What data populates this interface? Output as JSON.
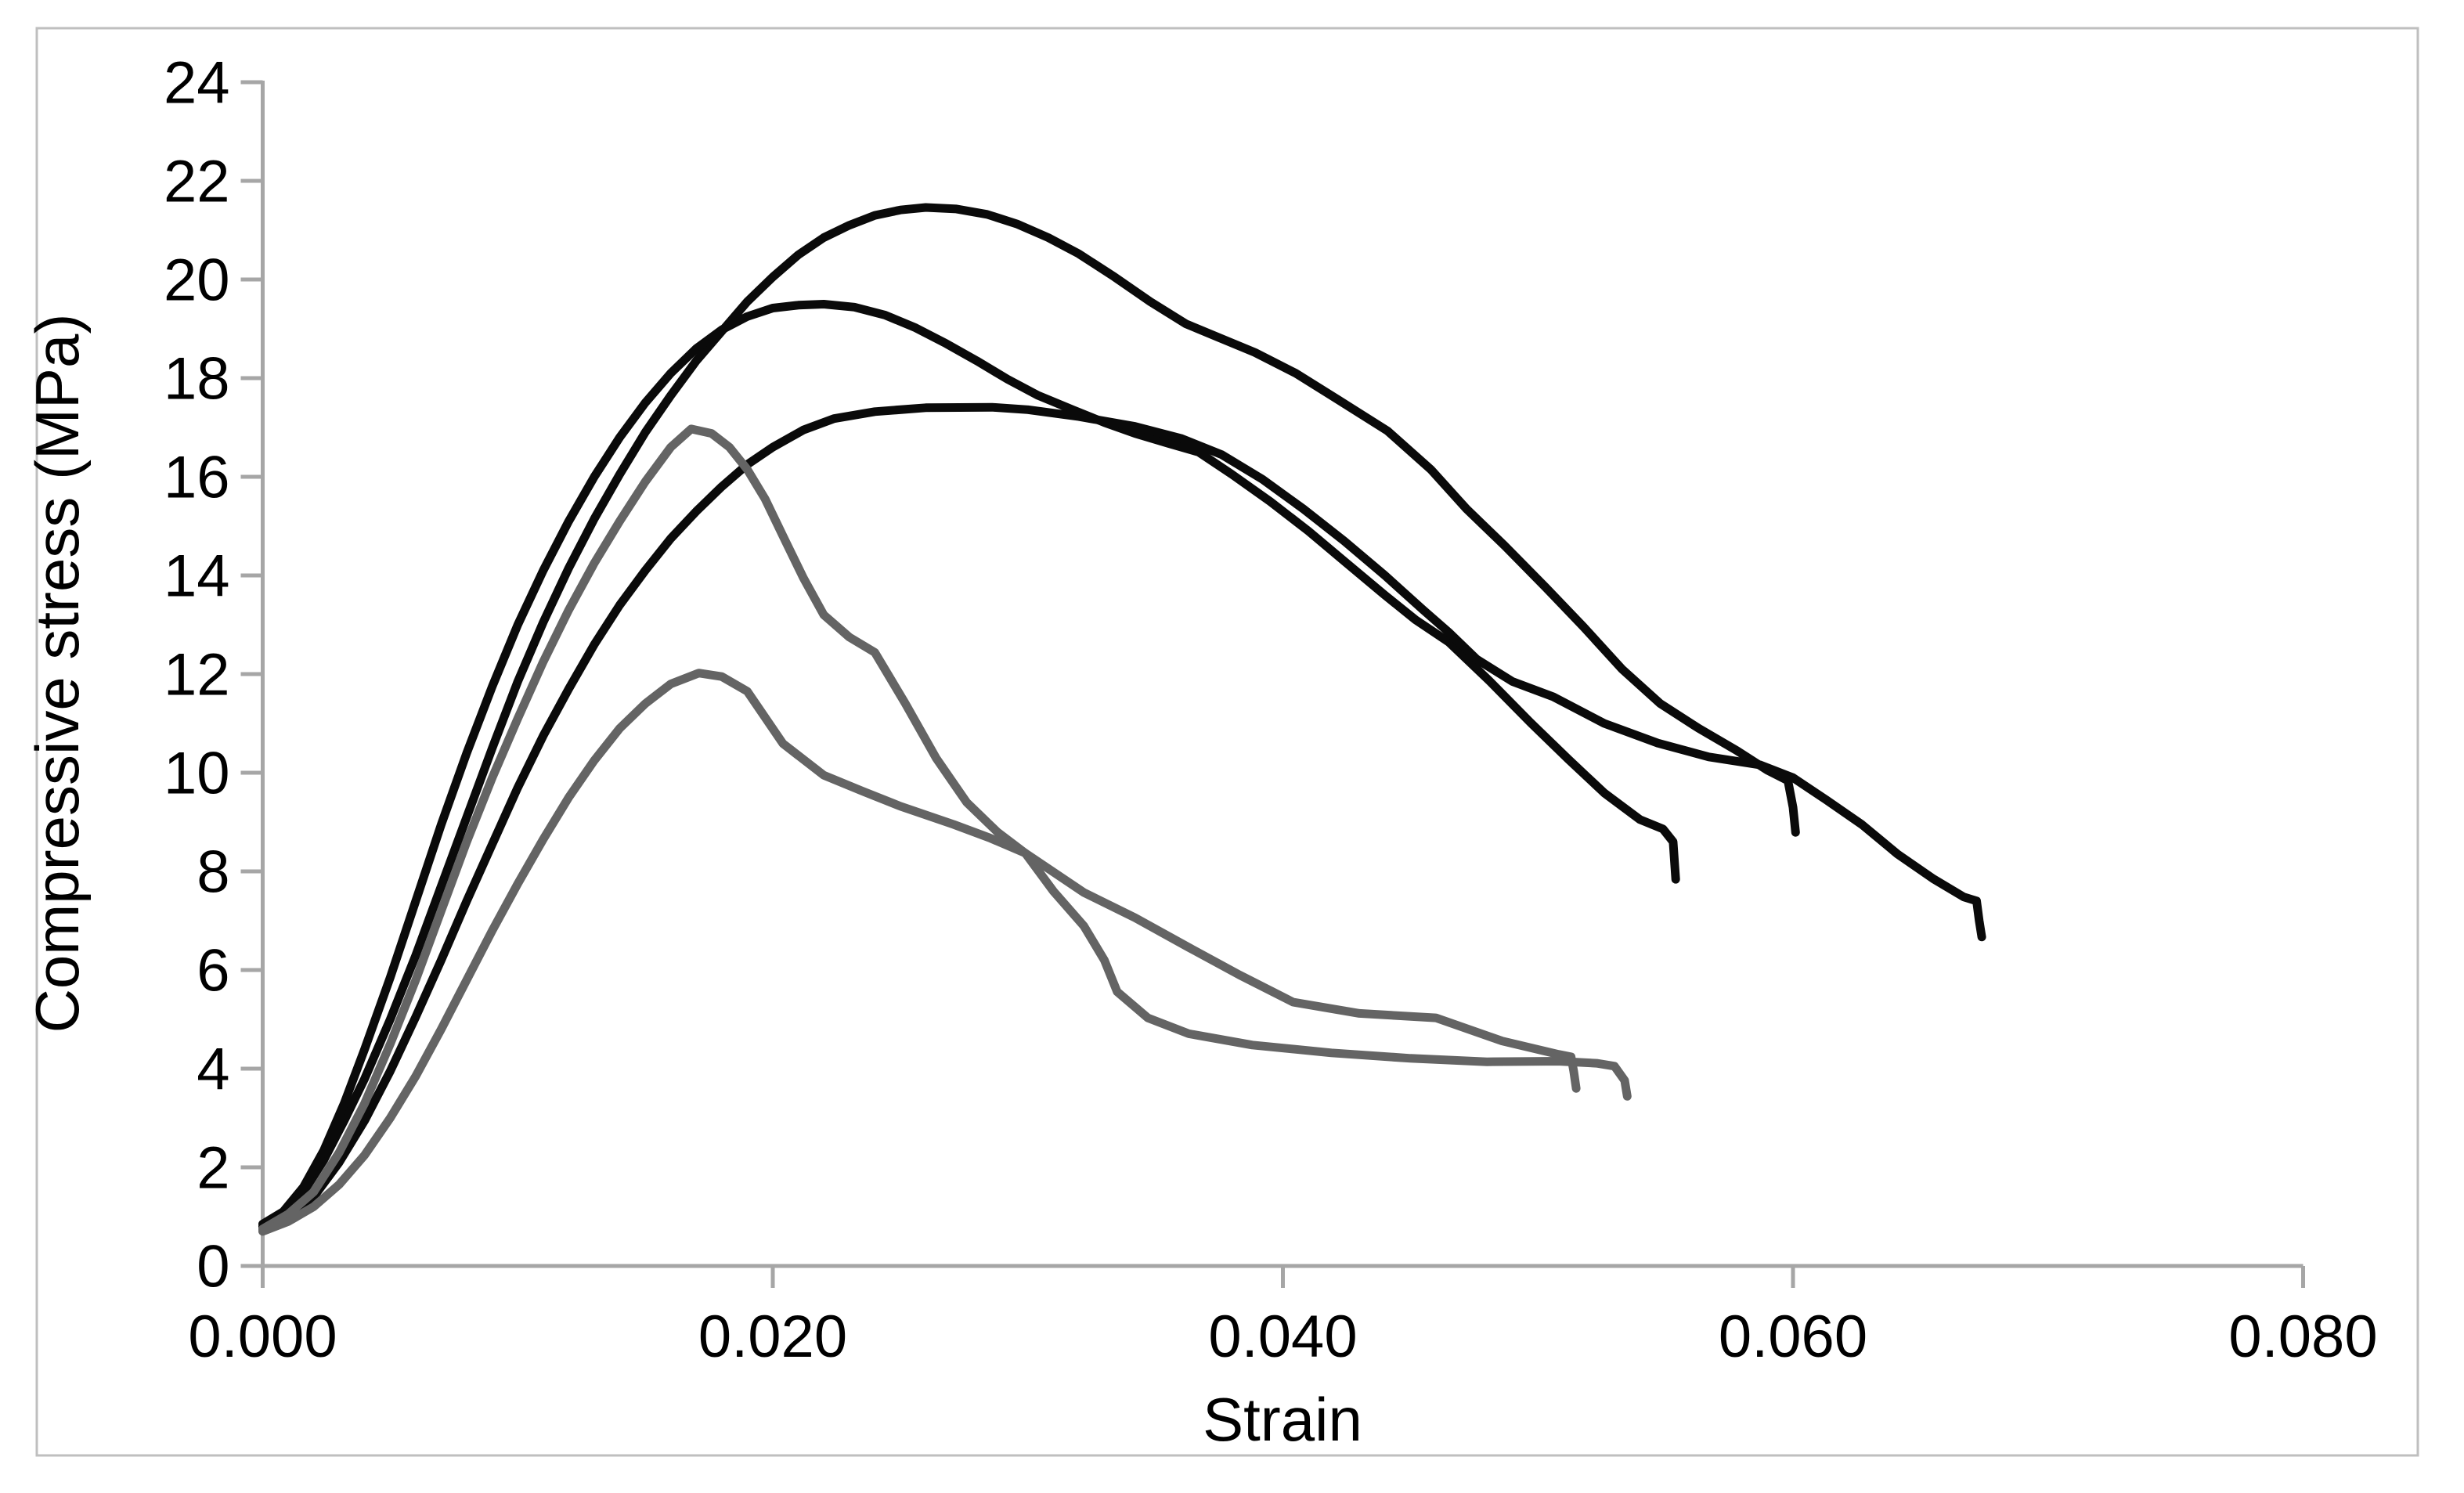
{
  "chart_data": {
    "type": "line",
    "title": "",
    "xlabel": "Strain",
    "ylabel": "Compressive stress (MPa)",
    "xlim": [
      0.0,
      0.08
    ],
    "ylim": [
      0,
      24
    ],
    "grid": false,
    "legend_position": "none",
    "x_tick_labels": [
      "0.000",
      "0.020",
      "0.040",
      "0.060",
      "0.080"
    ],
    "x_tick_values": [
      0.0,
      0.02,
      0.04,
      0.06,
      0.08
    ],
    "y_tick_values": [
      0,
      2,
      4,
      6,
      8,
      10,
      12,
      14,
      16,
      18,
      20,
      22,
      24
    ],
    "axis_color": "#a6a6a6",
    "border_color": "#bfbfbf",
    "series": [
      {
        "name": "black-curve-peak-21",
        "color": "#0a0a0a",
        "peak": {
          "strain": 0.026,
          "stress": 21.45
        },
        "points": [
          [
            0.0,
            0.8
          ],
          [
            0.0008,
            1.05
          ],
          [
            0.0016,
            1.5
          ],
          [
            0.0024,
            2.15
          ],
          [
            0.0032,
            2.95
          ],
          [
            0.004,
            3.8
          ],
          [
            0.005,
            5.0
          ],
          [
            0.006,
            6.3
          ],
          [
            0.007,
            7.7
          ],
          [
            0.008,
            9.1
          ],
          [
            0.009,
            10.5
          ],
          [
            0.01,
            11.85
          ],
          [
            0.011,
            13.05
          ],
          [
            0.012,
            14.15
          ],
          [
            0.013,
            15.15
          ],
          [
            0.014,
            16.05
          ],
          [
            0.015,
            16.9
          ],
          [
            0.016,
            17.65
          ],
          [
            0.017,
            18.35
          ],
          [
            0.018,
            18.95
          ],
          [
            0.019,
            19.55
          ],
          [
            0.02,
            20.05
          ],
          [
            0.021,
            20.5
          ],
          [
            0.022,
            20.85
          ],
          [
            0.023,
            21.1
          ],
          [
            0.024,
            21.3
          ],
          [
            0.025,
            21.41
          ],
          [
            0.026,
            21.46
          ],
          [
            0.0272,
            21.43
          ],
          [
            0.0284,
            21.32
          ],
          [
            0.0296,
            21.12
          ],
          [
            0.0308,
            20.85
          ],
          [
            0.032,
            20.52
          ],
          [
            0.0334,
            20.05
          ],
          [
            0.0348,
            19.55
          ],
          [
            0.0362,
            19.1
          ],
          [
            0.0375,
            18.82
          ],
          [
            0.0389,
            18.52
          ],
          [
            0.0405,
            18.1
          ],
          [
            0.0422,
            17.55
          ],
          [
            0.0441,
            16.93
          ],
          [
            0.0458,
            16.15
          ],
          [
            0.0472,
            15.35
          ],
          [
            0.0487,
            14.6
          ],
          [
            0.0503,
            13.76
          ],
          [
            0.0518,
            12.95
          ],
          [
            0.0533,
            12.1
          ],
          [
            0.0548,
            11.4
          ],
          [
            0.0563,
            10.9
          ],
          [
            0.0578,
            10.45
          ],
          [
            0.059,
            10.05
          ],
          [
            0.0598,
            9.84
          ],
          [
            0.06,
            9.3
          ],
          [
            0.0601,
            8.79
          ]
        ]
      },
      {
        "name": "black-curve-peak-19",
        "color": "#0a0a0a",
        "peak": {
          "strain": 0.022,
          "stress": 19.5
        },
        "points": [
          [
            0.0,
            0.85
          ],
          [
            0.0008,
            1.1
          ],
          [
            0.0016,
            1.6
          ],
          [
            0.0024,
            2.35
          ],
          [
            0.0032,
            3.3
          ],
          [
            0.004,
            4.4
          ],
          [
            0.005,
            5.85
          ],
          [
            0.006,
            7.4
          ],
          [
            0.007,
            8.95
          ],
          [
            0.008,
            10.4
          ],
          [
            0.009,
            11.75
          ],
          [
            0.01,
            13.0
          ],
          [
            0.011,
            14.1
          ],
          [
            0.012,
            15.1
          ],
          [
            0.013,
            16.0
          ],
          [
            0.014,
            16.8
          ],
          [
            0.015,
            17.5
          ],
          [
            0.016,
            18.1
          ],
          [
            0.017,
            18.6
          ],
          [
            0.018,
            18.98
          ],
          [
            0.019,
            19.25
          ],
          [
            0.02,
            19.42
          ],
          [
            0.021,
            19.48
          ],
          [
            0.022,
            19.5
          ],
          [
            0.0232,
            19.44
          ],
          [
            0.0244,
            19.28
          ],
          [
            0.0256,
            19.02
          ],
          [
            0.0268,
            18.7
          ],
          [
            0.028,
            18.35
          ],
          [
            0.0292,
            17.98
          ],
          [
            0.0304,
            17.65
          ],
          [
            0.0318,
            17.35
          ],
          [
            0.033,
            17.1
          ],
          [
            0.0342,
            16.88
          ],
          [
            0.0355,
            16.68
          ],
          [
            0.0367,
            16.5
          ],
          [
            0.038,
            16.05
          ],
          [
            0.0395,
            15.5
          ],
          [
            0.041,
            14.9
          ],
          [
            0.0425,
            14.25
          ],
          [
            0.044,
            13.6
          ],
          [
            0.0452,
            13.1
          ],
          [
            0.0465,
            12.65
          ],
          [
            0.0481,
            11.86
          ],
          [
            0.0497,
            11.02
          ],
          [
            0.0512,
            10.27
          ],
          [
            0.0526,
            9.59
          ],
          [
            0.054,
            9.05
          ],
          [
            0.0549,
            8.86
          ],
          [
            0.0553,
            8.6
          ],
          [
            0.0554,
            7.84
          ]
        ]
      },
      {
        "name": "black-curve-peak-17",
        "color": "#0a0a0a",
        "peak": {
          "strain": 0.0286,
          "stress": 17.4
        },
        "points": [
          [
            0.0,
            0.75
          ],
          [
            0.001,
            1.0
          ],
          [
            0.002,
            1.4
          ],
          [
            0.003,
            2.1
          ],
          [
            0.004,
            2.95
          ],
          [
            0.005,
            3.95
          ],
          [
            0.006,
            5.05
          ],
          [
            0.007,
            6.2
          ],
          [
            0.008,
            7.4
          ],
          [
            0.009,
            8.55
          ],
          [
            0.01,
            9.7
          ],
          [
            0.011,
            10.75
          ],
          [
            0.012,
            11.7
          ],
          [
            0.013,
            12.6
          ],
          [
            0.014,
            13.4
          ],
          [
            0.015,
            14.1
          ],
          [
            0.016,
            14.75
          ],
          [
            0.017,
            15.3
          ],
          [
            0.018,
            15.8
          ],
          [
            0.019,
            16.25
          ],
          [
            0.02,
            16.6
          ],
          [
            0.0212,
            16.95
          ],
          [
            0.0224,
            17.18
          ],
          [
            0.024,
            17.32
          ],
          [
            0.026,
            17.4
          ],
          [
            0.0286,
            17.41
          ],
          [
            0.03,
            17.36
          ],
          [
            0.032,
            17.22
          ],
          [
            0.0342,
            17.02
          ],
          [
            0.036,
            16.78
          ],
          [
            0.0376,
            16.45
          ],
          [
            0.0392,
            15.95
          ],
          [
            0.0408,
            15.35
          ],
          [
            0.0424,
            14.7
          ],
          [
            0.044,
            14.0
          ],
          [
            0.0455,
            13.3
          ],
          [
            0.0465,
            12.85
          ],
          [
            0.0476,
            12.3
          ],
          [
            0.049,
            11.85
          ],
          [
            0.0506,
            11.54
          ],
          [
            0.0526,
            11.0
          ],
          [
            0.0547,
            10.6
          ],
          [
            0.0567,
            10.32
          ],
          [
            0.0587,
            10.16
          ],
          [
            0.06,
            9.9
          ],
          [
            0.0613,
            9.45
          ],
          [
            0.0627,
            8.95
          ],
          [
            0.0641,
            8.35
          ],
          [
            0.0655,
            7.85
          ],
          [
            0.0667,
            7.48
          ],
          [
            0.0672,
            7.4
          ],
          [
            0.0673,
            7.0
          ],
          [
            0.0674,
            6.67
          ]
        ]
      },
      {
        "name": "gray-curve-peak-17",
        "color": "#646464",
        "peak": {
          "strain": 0.0168,
          "stress": 17.0
        },
        "points": [
          [
            0.0,
            0.75
          ],
          [
            0.001,
            1.05
          ],
          [
            0.002,
            1.5
          ],
          [
            0.003,
            2.3
          ],
          [
            0.004,
            3.3
          ],
          [
            0.005,
            4.5
          ],
          [
            0.006,
            5.8
          ],
          [
            0.007,
            7.2
          ],
          [
            0.008,
            8.6
          ],
          [
            0.009,
            9.9
          ],
          [
            0.01,
            11.1
          ],
          [
            0.011,
            12.25
          ],
          [
            0.012,
            13.3
          ],
          [
            0.013,
            14.25
          ],
          [
            0.014,
            15.1
          ],
          [
            0.015,
            15.9
          ],
          [
            0.016,
            16.6
          ],
          [
            0.0168,
            16.97
          ],
          [
            0.0176,
            16.88
          ],
          [
            0.0183,
            16.6
          ],
          [
            0.019,
            16.15
          ],
          [
            0.0197,
            15.55
          ],
          [
            0.0204,
            14.8
          ],
          [
            0.0212,
            13.95
          ],
          [
            0.022,
            13.2
          ],
          [
            0.023,
            12.75
          ],
          [
            0.024,
            12.44
          ],
          [
            0.0252,
            11.4
          ],
          [
            0.0264,
            10.3
          ],
          [
            0.0276,
            9.4
          ],
          [
            0.0288,
            8.8
          ],
          [
            0.0299,
            8.37
          ],
          [
            0.031,
            7.6
          ],
          [
            0.0322,
            6.89
          ],
          [
            0.033,
            6.2
          ],
          [
            0.0335,
            5.56
          ],
          [
            0.0347,
            5.03
          ],
          [
            0.0363,
            4.71
          ],
          [
            0.0388,
            4.48
          ],
          [
            0.0419,
            4.32
          ],
          [
            0.045,
            4.21
          ],
          [
            0.048,
            4.14
          ],
          [
            0.0508,
            4.15
          ],
          [
            0.0523,
            4.11
          ],
          [
            0.053,
            4.05
          ],
          [
            0.0534,
            3.76
          ],
          [
            0.0535,
            3.44
          ]
        ]
      },
      {
        "name": "gray-curve-peak-12",
        "color": "#646464",
        "peak": {
          "strain": 0.0171,
          "stress": 12.0
        },
        "points": [
          [
            0.0,
            0.7
          ],
          [
            0.001,
            0.9
          ],
          [
            0.002,
            1.2
          ],
          [
            0.003,
            1.65
          ],
          [
            0.004,
            2.25
          ],
          [
            0.005,
            3.0
          ],
          [
            0.006,
            3.85
          ],
          [
            0.007,
            4.8
          ],
          [
            0.008,
            5.8
          ],
          [
            0.009,
            6.8
          ],
          [
            0.01,
            7.75
          ],
          [
            0.011,
            8.65
          ],
          [
            0.012,
            9.5
          ],
          [
            0.013,
            10.25
          ],
          [
            0.014,
            10.9
          ],
          [
            0.015,
            11.4
          ],
          [
            0.016,
            11.8
          ],
          [
            0.0171,
            12.02
          ],
          [
            0.018,
            11.95
          ],
          [
            0.019,
            11.65
          ],
          [
            0.0204,
            10.59
          ],
          [
            0.022,
            9.95
          ],
          [
            0.0235,
            9.63
          ],
          [
            0.025,
            9.32
          ],
          [
            0.0271,
            8.95
          ],
          [
            0.0285,
            8.68
          ],
          [
            0.0299,
            8.37
          ],
          [
            0.0322,
            7.57
          ],
          [
            0.0342,
            7.06
          ],
          [
            0.0363,
            6.46
          ],
          [
            0.0383,
            5.9
          ],
          [
            0.0404,
            5.35
          ],
          [
            0.043,
            5.12
          ],
          [
            0.046,
            5.03
          ],
          [
            0.0486,
            4.56
          ],
          [
            0.0508,
            4.29
          ],
          [
            0.0513,
            4.24
          ],
          [
            0.0514,
            3.95
          ],
          [
            0.0515,
            3.6
          ]
        ]
      }
    ]
  }
}
